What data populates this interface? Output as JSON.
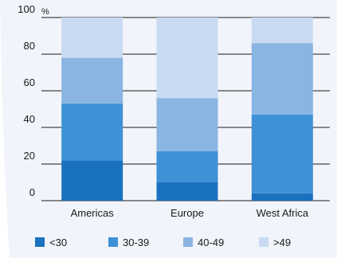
{
  "chart_data": {
    "type": "bar",
    "stacked": true,
    "unit": "%",
    "categories": [
      "Americas",
      "Europe",
      "West Africa"
    ],
    "series": [
      {
        "name": "<30",
        "color": "#1a72bf",
        "values": [
          22,
          10,
          4
        ]
      },
      {
        "name": "30-39",
        "color": "#3f91d6",
        "values": [
          31,
          17,
          43
        ]
      },
      {
        "name": "40-49",
        "color": "#8ab5e2",
        "values": [
          25,
          29,
          39
        ]
      },
      {
        "name": ">49",
        "color": "#c9dbf2",
        "values": [
          22,
          44,
          14
        ]
      }
    ],
    "ylim": [
      0,
      100
    ],
    "yticks": [
      "0",
      "20",
      "40",
      "60",
      "80",
      "100"
    ],
    "grid": true,
    "legend_position": "bottom",
    "background_color": "#f1f4fa"
  }
}
